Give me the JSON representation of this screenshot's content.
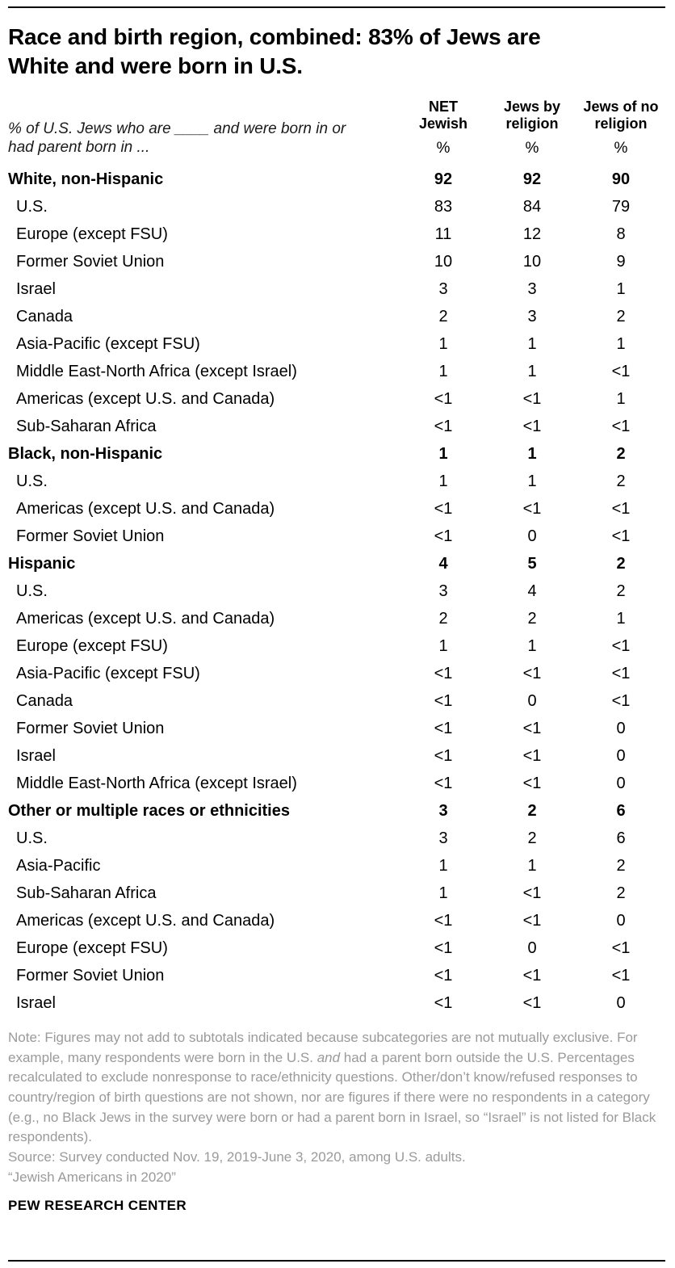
{
  "header": {
    "title": "Race and birth region, combined: 83% of Jews are White and were born in U.S.",
    "subtitle": "% of U.S. Jews who are ____ and were born in or had parent born in ..."
  },
  "chart_data": {
    "type": "table",
    "unit": "%",
    "columns": [
      {
        "line1": "NET",
        "line2": "Jewish"
      },
      {
        "line1": "Jews by",
        "line2": "religion"
      },
      {
        "line1": "Jews of no",
        "line2": "religion"
      }
    ],
    "rows": [
      {
        "label": "White, non-Hispanic",
        "bold": true,
        "indent": false,
        "values": [
          "92",
          "92",
          "90"
        ]
      },
      {
        "label": "U.S.",
        "bold": false,
        "indent": true,
        "values": [
          "83",
          "84",
          "79"
        ]
      },
      {
        "label": "Europe (except FSU)",
        "bold": false,
        "indent": true,
        "values": [
          "11",
          "12",
          "8"
        ]
      },
      {
        "label": "Former Soviet Union",
        "bold": false,
        "indent": true,
        "values": [
          "10",
          "10",
          "9"
        ]
      },
      {
        "label": "Israel",
        "bold": false,
        "indent": true,
        "values": [
          "3",
          "3",
          "1"
        ]
      },
      {
        "label": "Canada",
        "bold": false,
        "indent": true,
        "values": [
          "2",
          "3",
          "2"
        ]
      },
      {
        "label": "Asia-Pacific (except FSU)",
        "bold": false,
        "indent": true,
        "values": [
          "1",
          "1",
          "1"
        ]
      },
      {
        "label": "Middle East-North Africa (except Israel)",
        "bold": false,
        "indent": true,
        "values": [
          "1",
          "1",
          "<1"
        ]
      },
      {
        "label": "Americas (except U.S. and Canada)",
        "bold": false,
        "indent": true,
        "values": [
          "<1",
          "<1",
          "1"
        ]
      },
      {
        "label": "Sub-Saharan Africa",
        "bold": false,
        "indent": true,
        "values": [
          "<1",
          "<1",
          "<1"
        ]
      },
      {
        "label": "Black, non-Hispanic",
        "bold": true,
        "indent": false,
        "values": [
          "1",
          "1",
          "2"
        ]
      },
      {
        "label": "U.S.",
        "bold": false,
        "indent": true,
        "values": [
          "1",
          "1",
          "2"
        ]
      },
      {
        "label": "Americas (except U.S. and Canada)",
        "bold": false,
        "indent": true,
        "values": [
          "<1",
          "<1",
          "<1"
        ]
      },
      {
        "label": "Former Soviet Union",
        "bold": false,
        "indent": true,
        "values": [
          "<1",
          "0",
          "<1"
        ]
      },
      {
        "label": "Hispanic",
        "bold": true,
        "indent": false,
        "values": [
          "4",
          "5",
          "2"
        ]
      },
      {
        "label": "U.S.",
        "bold": false,
        "indent": true,
        "values": [
          "3",
          "4",
          "2"
        ]
      },
      {
        "label": "Americas (except U.S. and Canada)",
        "bold": false,
        "indent": true,
        "values": [
          "2",
          "2",
          "1"
        ]
      },
      {
        "label": "Europe (except FSU)",
        "bold": false,
        "indent": true,
        "values": [
          "1",
          "1",
          "<1"
        ]
      },
      {
        "label": "Asia-Pacific (except FSU)",
        "bold": false,
        "indent": true,
        "values": [
          "<1",
          "<1",
          "<1"
        ]
      },
      {
        "label": "Canada",
        "bold": false,
        "indent": true,
        "values": [
          "<1",
          "0",
          "<1"
        ]
      },
      {
        "label": "Former Soviet Union",
        "bold": false,
        "indent": true,
        "values": [
          "<1",
          "<1",
          "0"
        ]
      },
      {
        "label": "Israel",
        "bold": false,
        "indent": true,
        "values": [
          "<1",
          "<1",
          "0"
        ]
      },
      {
        "label": "Middle East-North Africa (except Israel)",
        "bold": false,
        "indent": true,
        "values": [
          "<1",
          "<1",
          "0"
        ]
      },
      {
        "label": "Other or multiple races or ethnicities",
        "bold": true,
        "indent": false,
        "values": [
          "3",
          "2",
          "6"
        ]
      },
      {
        "label": "U.S.",
        "bold": false,
        "indent": true,
        "values": [
          "3",
          "2",
          "6"
        ]
      },
      {
        "label": "Asia-Pacific",
        "bold": false,
        "indent": true,
        "values": [
          "1",
          "1",
          "2"
        ]
      },
      {
        "label": "Sub-Saharan Africa",
        "bold": false,
        "indent": true,
        "values": [
          "1",
          "<1",
          "2"
        ]
      },
      {
        "label": "Americas (except U.S. and Canada)",
        "bold": false,
        "indent": true,
        "values": [
          "<1",
          "<1",
          "0"
        ]
      },
      {
        "label": "Europe (except FSU)",
        "bold": false,
        "indent": true,
        "values": [
          "<1",
          "0",
          "<1"
        ]
      },
      {
        "label": "Former Soviet Union",
        "bold": false,
        "indent": true,
        "values": [
          "<1",
          "<1",
          "<1"
        ]
      },
      {
        "label": "Israel",
        "bold": false,
        "indent": true,
        "values": [
          "<1",
          "<1",
          "0"
        ]
      }
    ]
  },
  "footer": {
    "note_parts": [
      {
        "text": "Note: Figures may not add to subtotals indicated because subcategories are not mutually exclusive. For example, many respondents were born in the U.S. ",
        "italic": false
      },
      {
        "text": "and",
        "italic": true
      },
      {
        "text": " had a parent born outside the U.S. Percentages recalculated to exclude nonresponse to race/ethnicity questions. Other/don’t know/refused responses to country/region of birth questions are not shown, nor are figures if there were no respondents in a category (e.g., no Black Jews in the survey were born or had a parent born in Israel, so “Israel” is not listed for Black respondents).",
        "italic": false
      }
    ],
    "source": "Source: Survey conducted Nov. 19, 2019-June 3, 2020, among U.S. adults.",
    "citation": "“Jewish Americans in 2020”",
    "brand": "PEW RESEARCH CENTER"
  }
}
